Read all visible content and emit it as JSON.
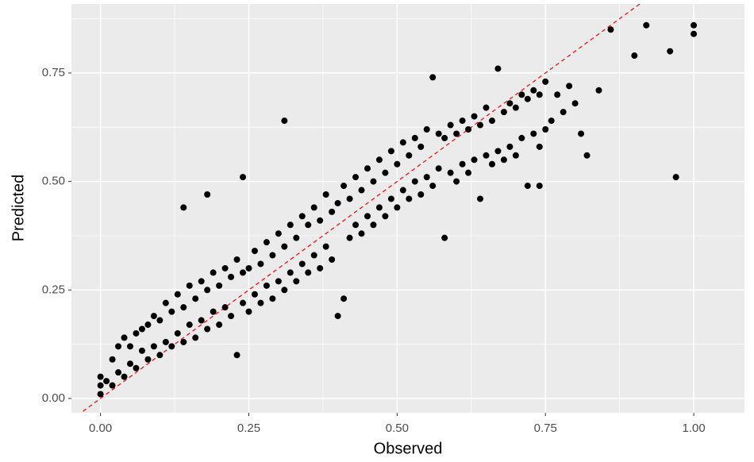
{
  "chart_data": {
    "type": "scatter",
    "x_label": "Observed",
    "y_label": "Predicted",
    "xlim": [
      -0.049,
      1.0855
    ],
    "ylim": [
      -0.033,
      0.909
    ],
    "xticks": [
      {
        "value": 0,
        "label": "0.00"
      },
      {
        "value": 0.25,
        "label": "0.25"
      },
      {
        "value": 0.5,
        "label": "0.50"
      },
      {
        "value": 0.75,
        "label": "0.75"
      },
      {
        "value": 1,
        "label": "1.00"
      }
    ],
    "yticks": [
      {
        "value": 0,
        "label": "0.00"
      },
      {
        "value": 0.25,
        "label": "0.25"
      },
      {
        "value": 0.5,
        "label": "0.50"
      },
      {
        "value": 0.75,
        "label": "0.75"
      }
    ],
    "x_minor_ticks": [
      0.125,
      0.375,
      0.625,
      0.875
    ],
    "y_minor_ticks": [
      0.125,
      0.375,
      0.625,
      0.875
    ],
    "grid": true,
    "color": "#000000",
    "reference_line": {
      "slope": 1,
      "intercept": 0,
      "color": "#ff0000",
      "dashed": true
    },
    "x": [
      0,
      0,
      0,
      0.01,
      0.02,
      0.02,
      0.03,
      0.03,
      0.04,
      0.04,
      0.05,
      0.05,
      0.06,
      0.06,
      0.07,
      0.07,
      0.08,
      0.08,
      0.09,
      0.09,
      0.1,
      0.1,
      0.11,
      0.11,
      0.12,
      0.12,
      0.13,
      0.13,
      0.14,
      0.14,
      0.15,
      0.15,
      0.16,
      0.16,
      0.17,
      0.17,
      0.18,
      0.18,
      0.19,
      0.19,
      0.2,
      0.2,
      0.21,
      0.21,
      0.22,
      0.22,
      0.23,
      0.23,
      0.24,
      0.24,
      0.25,
      0.25,
      0.26,
      0.26,
      0.27,
      0.27,
      0.28,
      0.28,
      0.29,
      0.29,
      0.3,
      0.3,
      0.31,
      0.31,
      0.32,
      0.32,
      0.33,
      0.33,
      0.34,
      0.34,
      0.35,
      0.35,
      0.36,
      0.36,
      0.37,
      0.37,
      0.38,
      0.38,
      0.39,
      0.39,
      0.4,
      0.4,
      0.41,
      0.41,
      0.42,
      0.42,
      0.43,
      0.43,
      0.44,
      0.44,
      0.45,
      0.45,
      0.46,
      0.46,
      0.47,
      0.47,
      0.48,
      0.48,
      0.49,
      0.49,
      0.5,
      0.5,
      0.51,
      0.51,
      0.52,
      0.52,
      0.53,
      0.53,
      0.54,
      0.54,
      0.55,
      0.55,
      0.56,
      0.56,
      0.57,
      0.57,
      0.58,
      0.58,
      0.59,
      0.59,
      0.6,
      0.6,
      0.61,
      0.61,
      0.62,
      0.62,
      0.63,
      0.63,
      0.64,
      0.64,
      0.65,
      0.65,
      0.66,
      0.66,
      0.67,
      0.67,
      0.68,
      0.68,
      0.69,
      0.69,
      0.7,
      0.7,
      0.71,
      0.71,
      0.72,
      0.72,
      0.73,
      0.73,
      0.74,
      0.74,
      0.75,
      0.75,
      0.76,
      0.77,
      0.78,
      0.79,
      0.8,
      0.81,
      0.82,
      0.84,
      0.86,
      0.9,
      0.92,
      0.96,
      0.97,
      1,
      1,
      0.31,
      0.18,
      0.14,
      0.24,
      0.74
    ],
    "y": [
      0.01,
      0.05,
      0.03,
      0.04,
      0.03,
      0.09,
      0.06,
      0.12,
      0.05,
      0.14,
      0.08,
      0.12,
      0.07,
      0.15,
      0.11,
      0.16,
      0.09,
      0.17,
      0.12,
      0.19,
      0.1,
      0.18,
      0.13,
      0.22,
      0.12,
      0.2,
      0.15,
      0.24,
      0.13,
      0.21,
      0.17,
      0.26,
      0.14,
      0.23,
      0.18,
      0.27,
      0.16,
      0.25,
      0.2,
      0.29,
      0.17,
      0.26,
      0.21,
      0.3,
      0.19,
      0.28,
      0.1,
      0.32,
      0.22,
      0.29,
      0.2,
      0.3,
      0.24,
      0.34,
      0.22,
      0.31,
      0.26,
      0.36,
      0.23,
      0.33,
      0.27,
      0.38,
      0.25,
      0.35,
      0.29,
      0.4,
      0.27,
      0.37,
      0.31,
      0.42,
      0.29,
      0.4,
      0.33,
      0.44,
      0.3,
      0.41,
      0.35,
      0.47,
      0.32,
      0.43,
      0.19,
      0.45,
      0.23,
      0.49,
      0.37,
      0.46,
      0.4,
      0.51,
      0.38,
      0.48,
      0.42,
      0.53,
      0.4,
      0.5,
      0.44,
      0.55,
      0.42,
      0.52,
      0.46,
      0.57,
      0.44,
      0.54,
      0.48,
      0.59,
      0.46,
      0.56,
      0.5,
      0.6,
      0.47,
      0.58,
      0.51,
      0.62,
      0.49,
      0.74,
      0.53,
      0.61,
      0.37,
      0.6,
      0.52,
      0.63,
      0.5,
      0.61,
      0.54,
      0.64,
      0.52,
      0.62,
      0.55,
      0.65,
      0.46,
      0.63,
      0.56,
      0.67,
      0.54,
      0.64,
      0.57,
      0.76,
      0.55,
      0.66,
      0.58,
      0.68,
      0.56,
      0.67,
      0.6,
      0.7,
      0.49,
      0.69,
      0.61,
      0.71,
      0.58,
      0.7,
      0.62,
      0.73,
      0.64,
      0.7,
      0.66,
      0.72,
      0.68,
      0.61,
      0.56,
      0.71,
      0.85,
      0.79,
      0.86,
      0.8,
      0.51,
      0.84,
      0.86,
      0.64,
      0.47,
      0.44,
      0.51,
      0.49
    ]
  }
}
